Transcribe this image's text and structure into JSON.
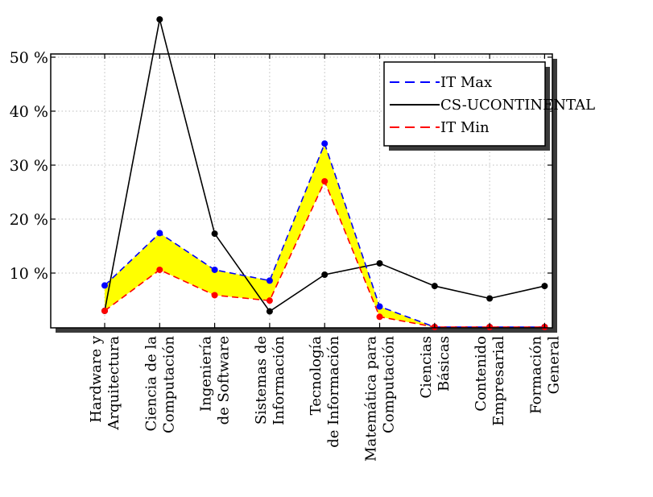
{
  "chart_data": {
    "type": "line",
    "categories": [
      [
        "Hardware y",
        "Arquitectura"
      ],
      [
        "Ciencia de la",
        "Computación"
      ],
      [
        "Ingeniería",
        "de Software"
      ],
      [
        "Sistemas de",
        "Información"
      ],
      [
        "Tecnología",
        "de Información"
      ],
      [
        "Matemática para",
        "Computación"
      ],
      [
        "Ciencias",
        "Básicas"
      ],
      [
        "Contenido",
        "Empresarial"
      ],
      [
        "Formación",
        "General"
      ]
    ],
    "series": [
      {
        "name": "IT Max",
        "values": [
          7.7,
          17.4,
          10.6,
          8.6,
          34.0,
          3.8,
          0,
          0,
          0
        ],
        "color": "#0000ff",
        "dash": "dashed"
      },
      {
        "name": "CS-UCONTINENTAL",
        "values": [
          3.0,
          57.0,
          17.3,
          2.9,
          9.7,
          11.8,
          7.6,
          5.3,
          7.6
        ],
        "color": "#000000",
        "dash": "solid"
      },
      {
        "name": "IT Min",
        "values": [
          3.0,
          10.6,
          5.9,
          4.9,
          27.0,
          1.9,
          0,
          0,
          0
        ],
        "color": "#ff0000",
        "dash": "dashed"
      }
    ],
    "fill_between": {
      "upper": "IT Max",
      "lower": "IT Min",
      "color": "#ffff00"
    },
    "yticks": [
      10,
      20,
      30,
      40,
      50
    ],
    "ytick_labels": [
      "10 %",
      "20 %",
      "30 %",
      "40 %",
      "50 %"
    ],
    "ylim": [
      0,
      50
    ],
    "grid": true,
    "legend_position": "top-right"
  }
}
